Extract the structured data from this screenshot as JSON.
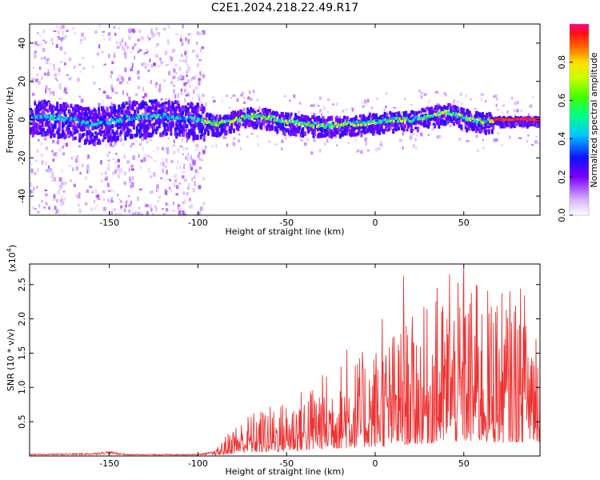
{
  "title": "C2E1.2024.218.22.49.R17",
  "chart_data": [
    {
      "type": "heatmap",
      "xlabel": "Height of straight line (km)",
      "ylabel": "Frequency (Hz)",
      "xlim": [
        -195,
        93
      ],
      "ylim": [
        -50,
        50
      ],
      "xticks": [
        -150,
        -100,
        -50,
        0,
        50
      ],
      "yticks": [
        -40,
        -20,
        0,
        20,
        40
      ],
      "colorbar": {
        "label": "Normalized spectral amplitude",
        "range": [
          0,
          1
        ],
        "ticks": [
          "0.0",
          "0.2",
          "0.4",
          "0.6",
          "0.8"
        ]
      },
      "ridge": {
        "description_points": [
          [
            -190,
            2
          ],
          [
            -170,
            0
          ],
          [
            -160,
            -3
          ],
          [
            -140,
            1
          ],
          [
            -120,
            2
          ],
          [
            -100,
            0
          ],
          [
            -90,
            -2
          ],
          [
            -75,
            1
          ],
          [
            -70,
            2
          ],
          [
            -60,
            1
          ],
          [
            -50,
            -1
          ],
          [
            -30,
            -3
          ],
          [
            -10,
            -2
          ],
          [
            0,
            -1
          ],
          [
            10,
            0
          ],
          [
            20,
            0
          ],
          [
            30,
            2
          ],
          [
            40,
            4
          ],
          [
            50,
            1
          ],
          [
            60,
            -1
          ],
          [
            66,
            0
          ],
          [
            93,
            0
          ]
        ],
        "peak_amplitude_region": [
          66,
          93
        ]
      }
    },
    {
      "type": "line",
      "xlabel": "Height of straight line (km)",
      "ylabel": "SNR (10 * v/v)",
      "multiplier_label": "(x10",
      "multiplier_exp": "4",
      "xlim": [
        -195,
        93
      ],
      "ylim": [
        0,
        2.8
      ],
      "xticks": [
        -150,
        -100,
        -50,
        0,
        50
      ],
      "yticks": [
        "0.5",
        "1.0",
        "1.5",
        "2.0",
        "2.5"
      ],
      "series": [
        {
          "color": "#ee3333",
          "envelope": [
            [
              -195,
              0.02
            ],
            [
              -160,
              0.03
            ],
            [
              -150,
              0.05
            ],
            [
              -140,
              0.02
            ],
            [
              -100,
              0.02
            ],
            [
              -90,
              0.05
            ],
            [
              -80,
              0.25
            ],
            [
              -70,
              0.35
            ],
            [
              -60,
              0.4
            ],
            [
              -50,
              0.45
            ],
            [
              -40,
              0.55
            ],
            [
              -30,
              0.65
            ],
            [
              -20,
              0.75
            ],
            [
              -10,
              0.8
            ],
            [
              0,
              0.9
            ],
            [
              10,
              1.0
            ],
            [
              20,
              1.1
            ],
            [
              30,
              1.2
            ],
            [
              40,
              1.3
            ],
            [
              50,
              1.4
            ],
            [
              60,
              1.35
            ],
            [
              70,
              1.3
            ],
            [
              80,
              1.35
            ],
            [
              93,
              1.35
            ]
          ],
          "peaks": [
            [
              -62,
              0.6
            ],
            [
              -36,
              0.9
            ],
            [
              -16,
              1.55
            ],
            [
              4,
              2.0
            ],
            [
              16,
              2.63
            ],
            [
              35,
              2.45
            ],
            [
              42,
              2.65
            ],
            [
              50,
              2.75
            ],
            [
              57,
              2.5
            ],
            [
              68,
              2.1
            ],
            [
              85,
              1.9
            ]
          ]
        }
      ]
    }
  ]
}
